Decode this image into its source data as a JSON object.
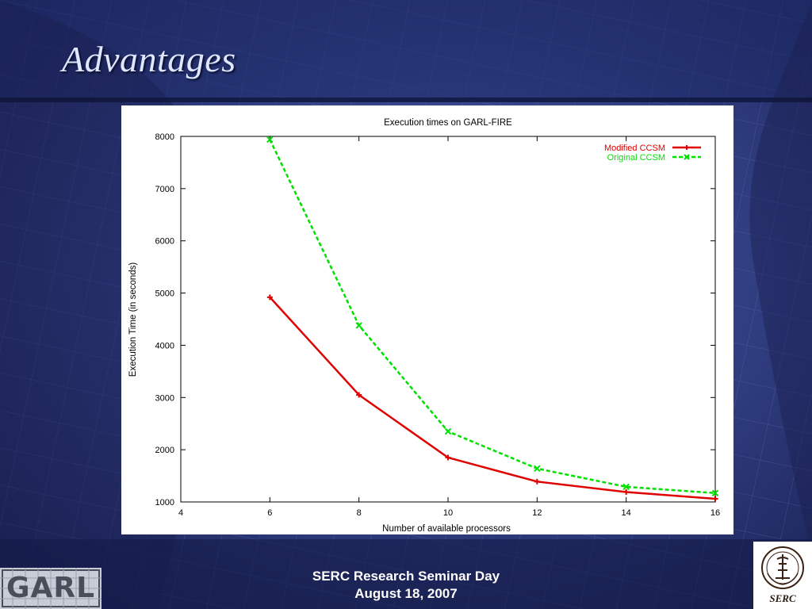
{
  "slide": {
    "title": "Advantages",
    "footer_line1": "SERC Research Seminar Day",
    "footer_line2": "August 18, 2007",
    "logo_left_text": "GARL",
    "logo_right_text": "SERC"
  },
  "chart_data": {
    "type": "line",
    "title": "Execution times on GARL-FIRE",
    "xlabel": "Number of available processors",
    "ylabel": "Execution Time (in seconds)",
    "xlim": [
      4,
      16
    ],
    "ylim": [
      1000,
      8000
    ],
    "xticks": [
      4,
      6,
      8,
      10,
      12,
      14,
      16
    ],
    "yticks": [
      1000,
      2000,
      3000,
      4000,
      5000,
      6000,
      7000,
      8000
    ],
    "grid": false,
    "legend_position": "top-right",
    "series": [
      {
        "name": "Modified CCSM",
        "color": "#e00000",
        "style": "solid",
        "marker": "plus",
        "x": [
          6,
          8,
          10,
          12,
          14,
          16
        ],
        "y": [
          4920,
          3050,
          1850,
          1390,
          1190,
          1060
        ]
      },
      {
        "name": "Original CCSM",
        "color": "#00e000",
        "style": "dashed",
        "marker": "x",
        "x": [
          6,
          8,
          10,
          12,
          14,
          16
        ],
        "y": [
          7940,
          4380,
          2350,
          1640,
          1290,
          1170
        ]
      }
    ]
  }
}
